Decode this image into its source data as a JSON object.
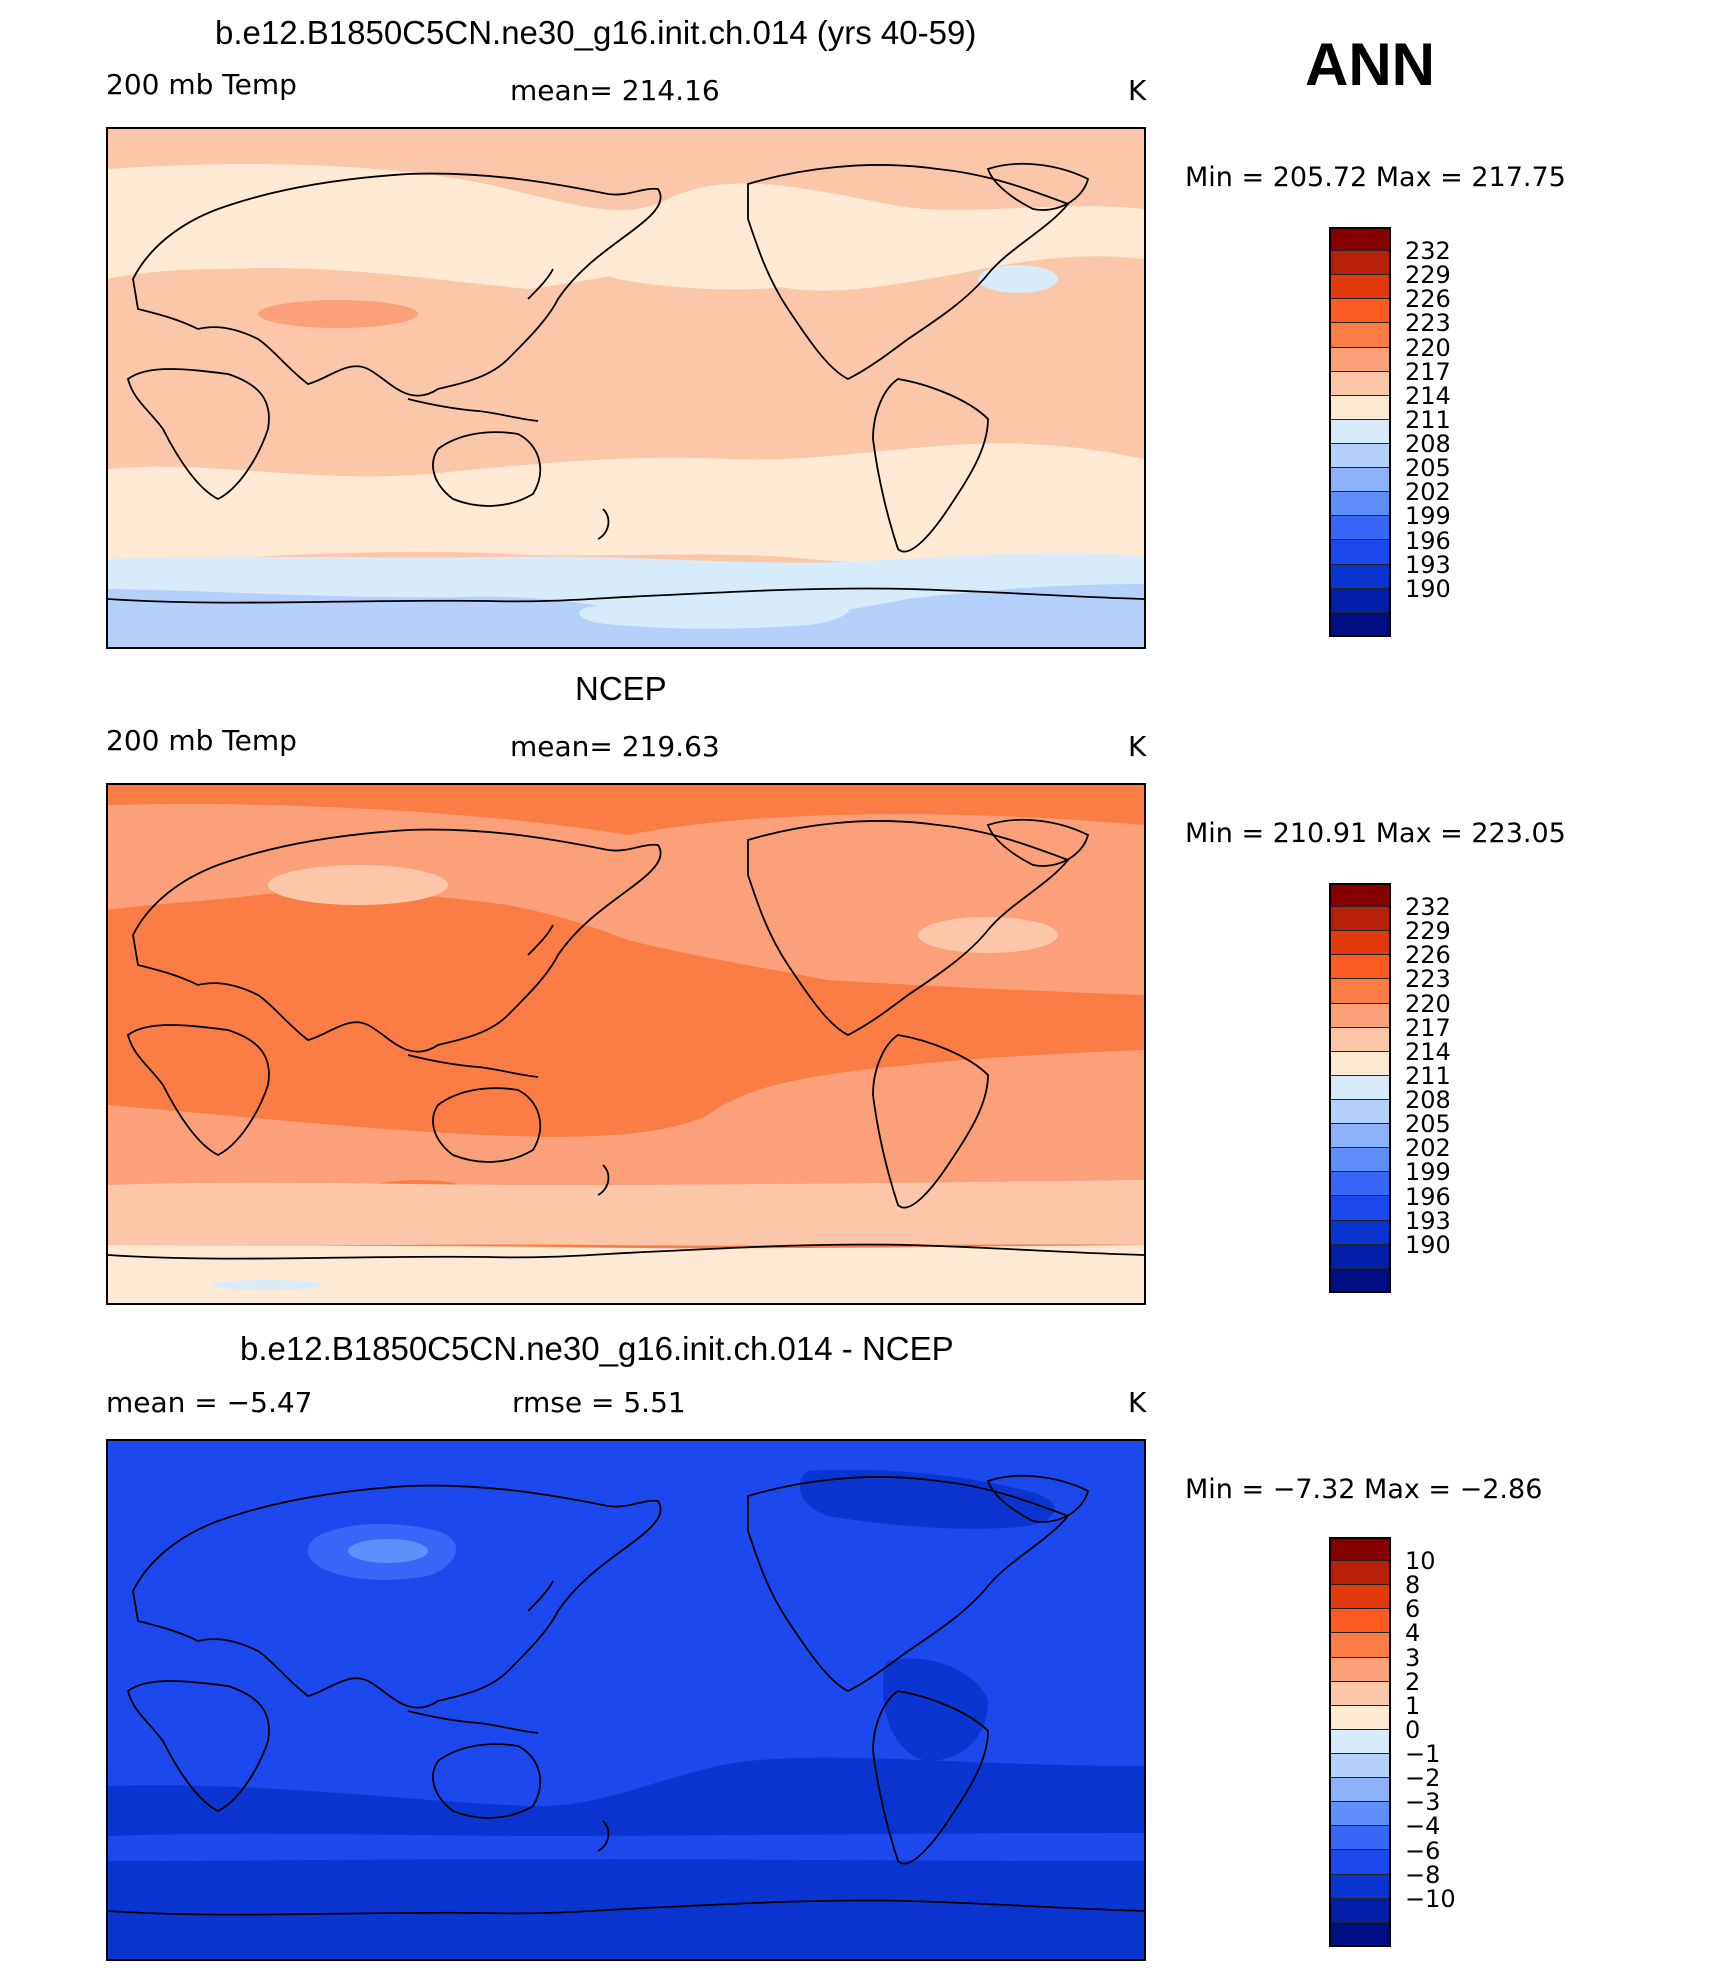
{
  "season": "ANN",
  "panels": [
    {
      "title": "b.e12.B1850C5CN.ne30_g16.init.ch.014 (yrs 40-59)",
      "left_label": "200 mb Temp",
      "center_label": "mean=  214.16",
      "units": "K",
      "minmax": "Min  =  205.72  Max  =  217.75",
      "colorbar_labels": [
        "232",
        "229",
        "226",
        "223",
        "220",
        "217",
        "214",
        "211",
        "208",
        "205",
        "202",
        "199",
        "196",
        "193",
        "190"
      ]
    },
    {
      "title": "NCEP",
      "left_label": "200 mb Temp",
      "center_label": "mean=  219.63",
      "units": "K",
      "minmax": "Min  =  210.91  Max  =  223.05",
      "colorbar_labels": [
        "232",
        "229",
        "226",
        "223",
        "220",
        "217",
        "214",
        "211",
        "208",
        "205",
        "202",
        "199",
        "196",
        "193",
        "190"
      ]
    },
    {
      "title": "b.e12.B1850C5CN.ne30_g16.init.ch.014 - NCEP",
      "left_label": "mean  =    −5.47",
      "center_label": "rmse  =     5.51",
      "units": "K",
      "minmax": "Min  =    −7.32  Max  =    −2.86",
      "colorbar_labels": [
        "10",
        "8",
        "6",
        "4",
        "3",
        "2",
        "1",
        "0",
        "−1",
        "−2",
        "−3",
        "−4",
        "−6",
        "−8",
        "−10"
      ]
    }
  ],
  "colors": {
    "abs_scale": [
      "#870000",
      "#b8200a",
      "#e23a0c",
      "#fb5a20",
      "#fc7c45",
      "#fca07a",
      "#fcc7a8",
      "#fde9d4",
      "#d7ebfb",
      "#b5d0fb",
      "#8cb2fb",
      "#5e8ffb",
      "#3667f8",
      "#1c49ee",
      "#0a35d0",
      "#011fa8",
      "#000e85"
    ],
    "map": {
      "p1_base": "#fcc7a8",
      "p1_band": "#fde9d4",
      "p1_pole": "#d7ebfb",
      "p1_south": "#b5d0fb",
      "p1_warm": "#fca07a",
      "p2_base": "#fc7c45",
      "p2_mid": "#fca07a",
      "p2_high": "#fcc7a8",
      "p2_pole": "#fde9d4",
      "p3_base": "#1c49ee",
      "p3_dark": "#0a35d0",
      "p3_light": "#3667f8",
      "p3_lighter": "#5e8ffb"
    }
  }
}
